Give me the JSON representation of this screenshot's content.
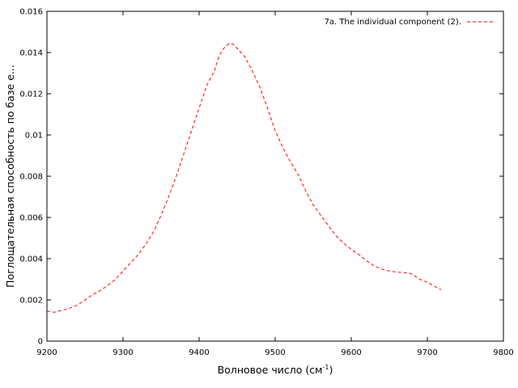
{
  "chart_data": {
    "type": "line",
    "title": "",
    "xlabel": "Волновое число (см",
    "xlabel_sup": "-1",
    "xlabel_close": ")",
    "ylabel": "Поглощательная способность по базе е...",
    "xlim": [
      9200,
      9800
    ],
    "ylim": [
      0,
      0.016
    ],
    "x_ticks": [
      9200,
      9300,
      9400,
      9500,
      9600,
      9700,
      9800
    ],
    "y_ticks": [
      0,
      0.002,
      0.004,
      0.006,
      0.008,
      0.01,
      0.012,
      0.014,
      0.016
    ],
    "y_tick_labels": [
      "0",
      "0.002",
      "0.004",
      "0.006",
      "0.008",
      "0.01",
      "0.012",
      "0.014",
      "0.016"
    ],
    "grid": false,
    "legend_position": "top-right",
    "series": [
      {
        "name": "7a. The individual component (2).",
        "color": "#ff0000",
        "dash": true,
        "x": [
          9200,
          9210,
          9220,
          9230,
          9240,
          9250,
          9260,
          9270,
          9280,
          9290,
          9300,
          9310,
          9320,
          9330,
          9340,
          9350,
          9360,
          9370,
          9380,
          9390,
          9400,
          9410,
          9420,
          9425,
          9430,
          9435,
          9440,
          9445,
          9450,
          9455,
          9460,
          9470,
          9480,
          9490,
          9500,
          9510,
          9520,
          9530,
          9540,
          9550,
          9560,
          9570,
          9580,
          9590,
          9600,
          9610,
          9620,
          9630,
          9640,
          9650,
          9660,
          9670,
          9680,
          9690,
          9700,
          9710,
          9718
        ],
        "y": [
          0.00145,
          0.0014,
          0.0015,
          0.0016,
          0.00175,
          0.002,
          0.00225,
          0.00245,
          0.0027,
          0.003,
          0.0034,
          0.0038,
          0.0042,
          0.0047,
          0.0053,
          0.0061,
          0.007,
          0.008,
          0.0091,
          0.0102,
          0.0113,
          0.0124,
          0.0131,
          0.0137,
          0.0141,
          0.0143,
          0.01445,
          0.0144,
          0.0142,
          0.014,
          0.0138,
          0.0131,
          0.0123,
          0.0113,
          0.0102,
          0.0094,
          0.0087,
          0.0081,
          0.0073,
          0.0066,
          0.0061,
          0.0056,
          0.0051,
          0.00475,
          0.00445,
          0.0042,
          0.0039,
          0.00365,
          0.0035,
          0.0034,
          0.00335,
          0.00332,
          0.00325,
          0.003,
          0.00285,
          0.00265,
          0.0025
        ]
      }
    ]
  }
}
